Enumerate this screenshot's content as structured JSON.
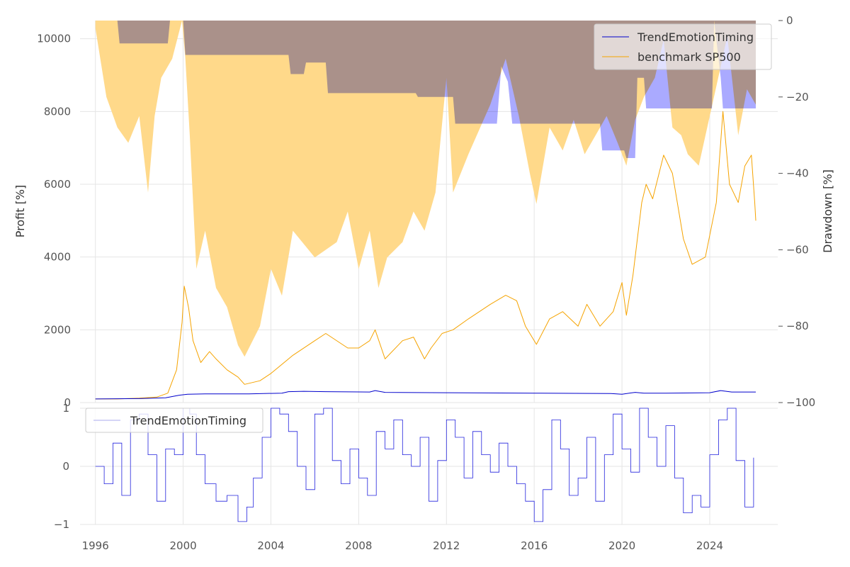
{
  "chart_data": [
    {
      "type": "line",
      "panel": "top",
      "title": "",
      "xlabel": "",
      "ylabel": "Profit [%]",
      "y2label": "Drawdown [%]",
      "xlim": [
        1995.3,
        2027.1
      ],
      "ylim": [
        0,
        10500
      ],
      "y2lim": [
        -100,
        0
      ],
      "yticks": [
        0,
        2000,
        4000,
        6000,
        8000,
        10000
      ],
      "y2ticks": [
        0,
        -20,
        -40,
        -60,
        -80,
        -100
      ],
      "y2tick_labels": [
        "0",
        "−20",
        "−40",
        "−60",
        "−80",
        "−100"
      ],
      "grid": true,
      "legend_position": "top-right",
      "series": [
        {
          "name": "TrendEmotionTiming",
          "axis": "left",
          "color": "#0000cc",
          "x": [
            1996.0,
            1998.0,
            1999.2,
            1999.8,
            2000.2,
            2001.0,
            2003.0,
            2004.5,
            2004.8,
            2005.5,
            2006.5,
            2008.5,
            2008.75,
            2009.2,
            2012.0,
            2016.0,
            2019.5,
            2020.0,
            2020.6,
            2021.0,
            2022.0,
            2024.0,
            2024.5,
            2025.0,
            2026.1
          ],
          "values": [
            100,
            110,
            130,
            200,
            230,
            240,
            240,
            260,
            300,
            310,
            300,
            290,
            330,
            280,
            270,
            260,
            250,
            230,
            280,
            260,
            260,
            270,
            330,
            290,
            290
          ]
        },
        {
          "name": "benchmark SP500",
          "axis": "left",
          "color": "#f5a300",
          "x": [
            1996.0,
            1997.0,
            1998.0,
            1998.8,
            1999.3,
            1999.7,
            1999.95,
            2000.05,
            2000.25,
            2000.45,
            2000.8,
            2001.2,
            2001.5,
            2002.0,
            2002.5,
            2002.8,
            2003.5,
            2004.0,
            2005.0,
            2006.0,
            2006.5,
            2007.5,
            2008.0,
            2008.5,
            2008.75,
            2009.2,
            2010.0,
            2010.5,
            2011.0,
            2011.3,
            2011.8,
            2012.3,
            2013.0,
            2014.0,
            2014.7,
            2015.2,
            2015.6,
            2016.1,
            2016.7,
            2017.3,
            2018.0,
            2018.4,
            2019.0,
            2019.6,
            2020.0,
            2020.2,
            2020.5,
            2020.9,
            2021.1,
            2021.4,
            2021.9,
            2022.3,
            2022.8,
            2023.2,
            2023.8,
            2024.3,
            2024.6,
            2024.9,
            2025.3,
            2025.6,
            2025.9,
            2026.05,
            2026.1
          ],
          "values": [
            100,
            100,
            120,
            150,
            260,
            900,
            2200,
            3200,
            2600,
            1700,
            1100,
            1400,
            1200,
            900,
            700,
            500,
            600,
            800,
            1300,
            1700,
            1900,
            1500,
            1500,
            1700,
            2000,
            1200,
            1700,
            1800,
            1200,
            1500,
            1900,
            2000,
            2300,
            2700,
            2950,
            2800,
            2100,
            1600,
            2300,
            2500,
            2100,
            2700,
            2100,
            2500,
            3300,
            2400,
            3500,
            5500,
            6000,
            5600,
            6800,
            6300,
            4500,
            3800,
            4000,
            5500,
            8000,
            6000,
            5500,
            6500,
            6800,
            5500,
            5000
          ]
        },
        {
          "name": "TrendEmotionTiming drawdown",
          "axis": "right",
          "color": "#aaaaff",
          "x": [
            1996.0,
            1997.0,
            1997.1,
            1998.5,
            1998.6,
            1999.3,
            1999.4,
            2000.0,
            2000.1,
            2004.8,
            2004.9,
            2005.5,
            2005.6,
            2006.5,
            2006.6,
            2008.7,
            2008.8,
            2010.6,
            2010.7,
            2011.8,
            2011.9,
            2012.3,
            2012.4,
            2013.5,
            2013.6,
            2014.3,
            2014.5,
            2014.8,
            2015.0,
            2019.0,
            2019.1,
            2020.1,
            2020.2,
            2020.6,
            2020.7,
            2021.0,
            2021.1,
            2022.5,
            2022.6,
            2024.1,
            2024.2,
            2024.5,
            2024.6,
            2026.1
          ],
          "values": [
            0,
            0,
            -6,
            -6,
            -6,
            -6,
            0,
            0,
            -9,
            -9,
            -14,
            -14,
            -11,
            -11,
            -19,
            -19,
            -19,
            -19,
            -20,
            -20,
            -20,
            -20,
            -27,
            -27,
            -27,
            -27,
            -12,
            -16,
            -27,
            -27,
            -34,
            -34,
            -36,
            -36,
            -15,
            -15,
            -23,
            -23,
            -23,
            -23,
            0,
            -15,
            -23,
            -23
          ]
        },
        {
          "name": "benchmark SP500 drawdown",
          "axis": "right",
          "color": "#ffd98a",
          "x": [
            1996.0,
            1996.5,
            1997.0,
            1997.5,
            1998.0,
            1998.4,
            1998.7,
            1999.0,
            1999.5,
            1999.95,
            2000.1,
            2000.3,
            2000.6,
            2001.0,
            2001.5,
            2002.0,
            2002.5,
            2002.8,
            2003.5,
            2004.0,
            2004.5,
            2005.0,
            2006.0,
            2007.0,
            2007.5,
            2008.0,
            2008.5,
            2008.9,
            2009.3,
            2010.0,
            2010.5,
            2011.0,
            2011.5,
            2012.0,
            2012.3,
            2013.0,
            2014.0,
            2014.7,
            2015.3,
            2015.8,
            2016.1,
            2016.7,
            2017.3,
            2017.8,
            2018.3,
            2018.8,
            2019.3,
            2019.8,
            2020.2,
            2020.6,
            2021.0,
            2021.5,
            2021.9,
            2022.3,
            2022.7,
            2023.0,
            2023.5,
            2024.0,
            2024.5,
            2024.8,
            2025.3,
            2025.7,
            2026.1
          ],
          "values": [
            -2,
            -20,
            -28,
            -32,
            -25,
            -45,
            -25,
            -15,
            -10,
            0,
            -10,
            -30,
            -65,
            -55,
            -70,
            -75,
            -85,
            -88,
            -80,
            -65,
            -72,
            -55,
            -62,
            -58,
            -50,
            -65,
            -55,
            -70,
            -62,
            -58,
            -50,
            -55,
            -45,
            -15,
            -45,
            -35,
            -22,
            -10,
            -25,
            -40,
            -48,
            -28,
            -34,
            -26,
            -35,
            -30,
            -25,
            -32,
            -38,
            -26,
            -20,
            -15,
            -5,
            -28,
            -30,
            -35,
            -38,
            -25,
            -12,
            -4,
            -30,
            -18,
            -22
          ]
        }
      ]
    },
    {
      "type": "line",
      "panel": "bottom",
      "title": "",
      "xlabel": "",
      "ylabel": "",
      "xlim": [
        1995.3,
        2027.1
      ],
      "ylim": [
        -1,
        1
      ],
      "yticks": [
        -1,
        0,
        1
      ],
      "ytick_labels": [
        "−1",
        "0",
        "1"
      ],
      "xticks": [
        1996,
        2000,
        2004,
        2008,
        2012,
        2016,
        2020,
        2024
      ],
      "xtick_labels": [
        "1996",
        "2000",
        "2004",
        "2008",
        "2012",
        "2016",
        "2020",
        "2024"
      ],
      "grid": true,
      "legend_position": "top-left",
      "series": [
        {
          "name": "TrendEmotionTiming",
          "color": "#2222dd",
          "x": [
            1996.0,
            1996.4,
            1996.8,
            1997.2,
            1997.6,
            1998.0,
            1998.4,
            1998.8,
            1999.2,
            1999.6,
            2000.0,
            2000.3,
            2000.6,
            2001.0,
            2001.5,
            2002.0,
            2002.5,
            2002.9,
            2003.2,
            2003.6,
            2004.0,
            2004.4,
            2004.8,
            2005.2,
            2005.6,
            2006.0,
            2006.4,
            2006.8,
            2007.2,
            2007.6,
            2008.0,
            2008.4,
            2008.8,
            2009.2,
            2009.6,
            2010.0,
            2010.4,
            2010.8,
            2011.2,
            2011.6,
            2012.0,
            2012.4,
            2012.8,
            2013.2,
            2013.6,
            2014.0,
            2014.4,
            2014.8,
            2015.2,
            2015.6,
            2016.0,
            2016.4,
            2016.8,
            2017.2,
            2017.6,
            2018.0,
            2018.4,
            2018.8,
            2019.2,
            2019.6,
            2020.0,
            2020.4,
            2020.8,
            2021.2,
            2021.6,
            2022.0,
            2022.4,
            2022.8,
            2023.2,
            2023.6,
            2024.0,
            2024.4,
            2024.8,
            2025.2,
            2025.6,
            2026.0
          ],
          "values": [
            0.0,
            -0.3,
            0.4,
            -0.5,
            0.8,
            0.9,
            0.2,
            -0.6,
            0.3,
            0.2,
            1.0,
            0.9,
            0.2,
            -0.3,
            -0.6,
            -0.5,
            -0.95,
            -0.7,
            -0.2,
            0.5,
            1.0,
            0.9,
            0.6,
            0.0,
            -0.4,
            0.9,
            1.0,
            0.1,
            -0.3,
            0.3,
            -0.2,
            -0.5,
            0.6,
            0.3,
            0.8,
            0.2,
            0.0,
            0.5,
            -0.6,
            0.1,
            0.8,
            0.5,
            -0.2,
            0.6,
            0.2,
            -0.1,
            0.4,
            0.0,
            -0.3,
            -0.6,
            -0.95,
            -0.4,
            0.8,
            0.3,
            -0.5,
            -0.2,
            0.5,
            -0.6,
            0.2,
            0.9,
            0.3,
            -0.1,
            1.0,
            0.5,
            0.0,
            0.7,
            -0.2,
            -0.8,
            -0.5,
            -0.7,
            0.2,
            0.8,
            1.0,
            0.1,
            -0.7,
            0.15
          ]
        }
      ]
    }
  ]
}
